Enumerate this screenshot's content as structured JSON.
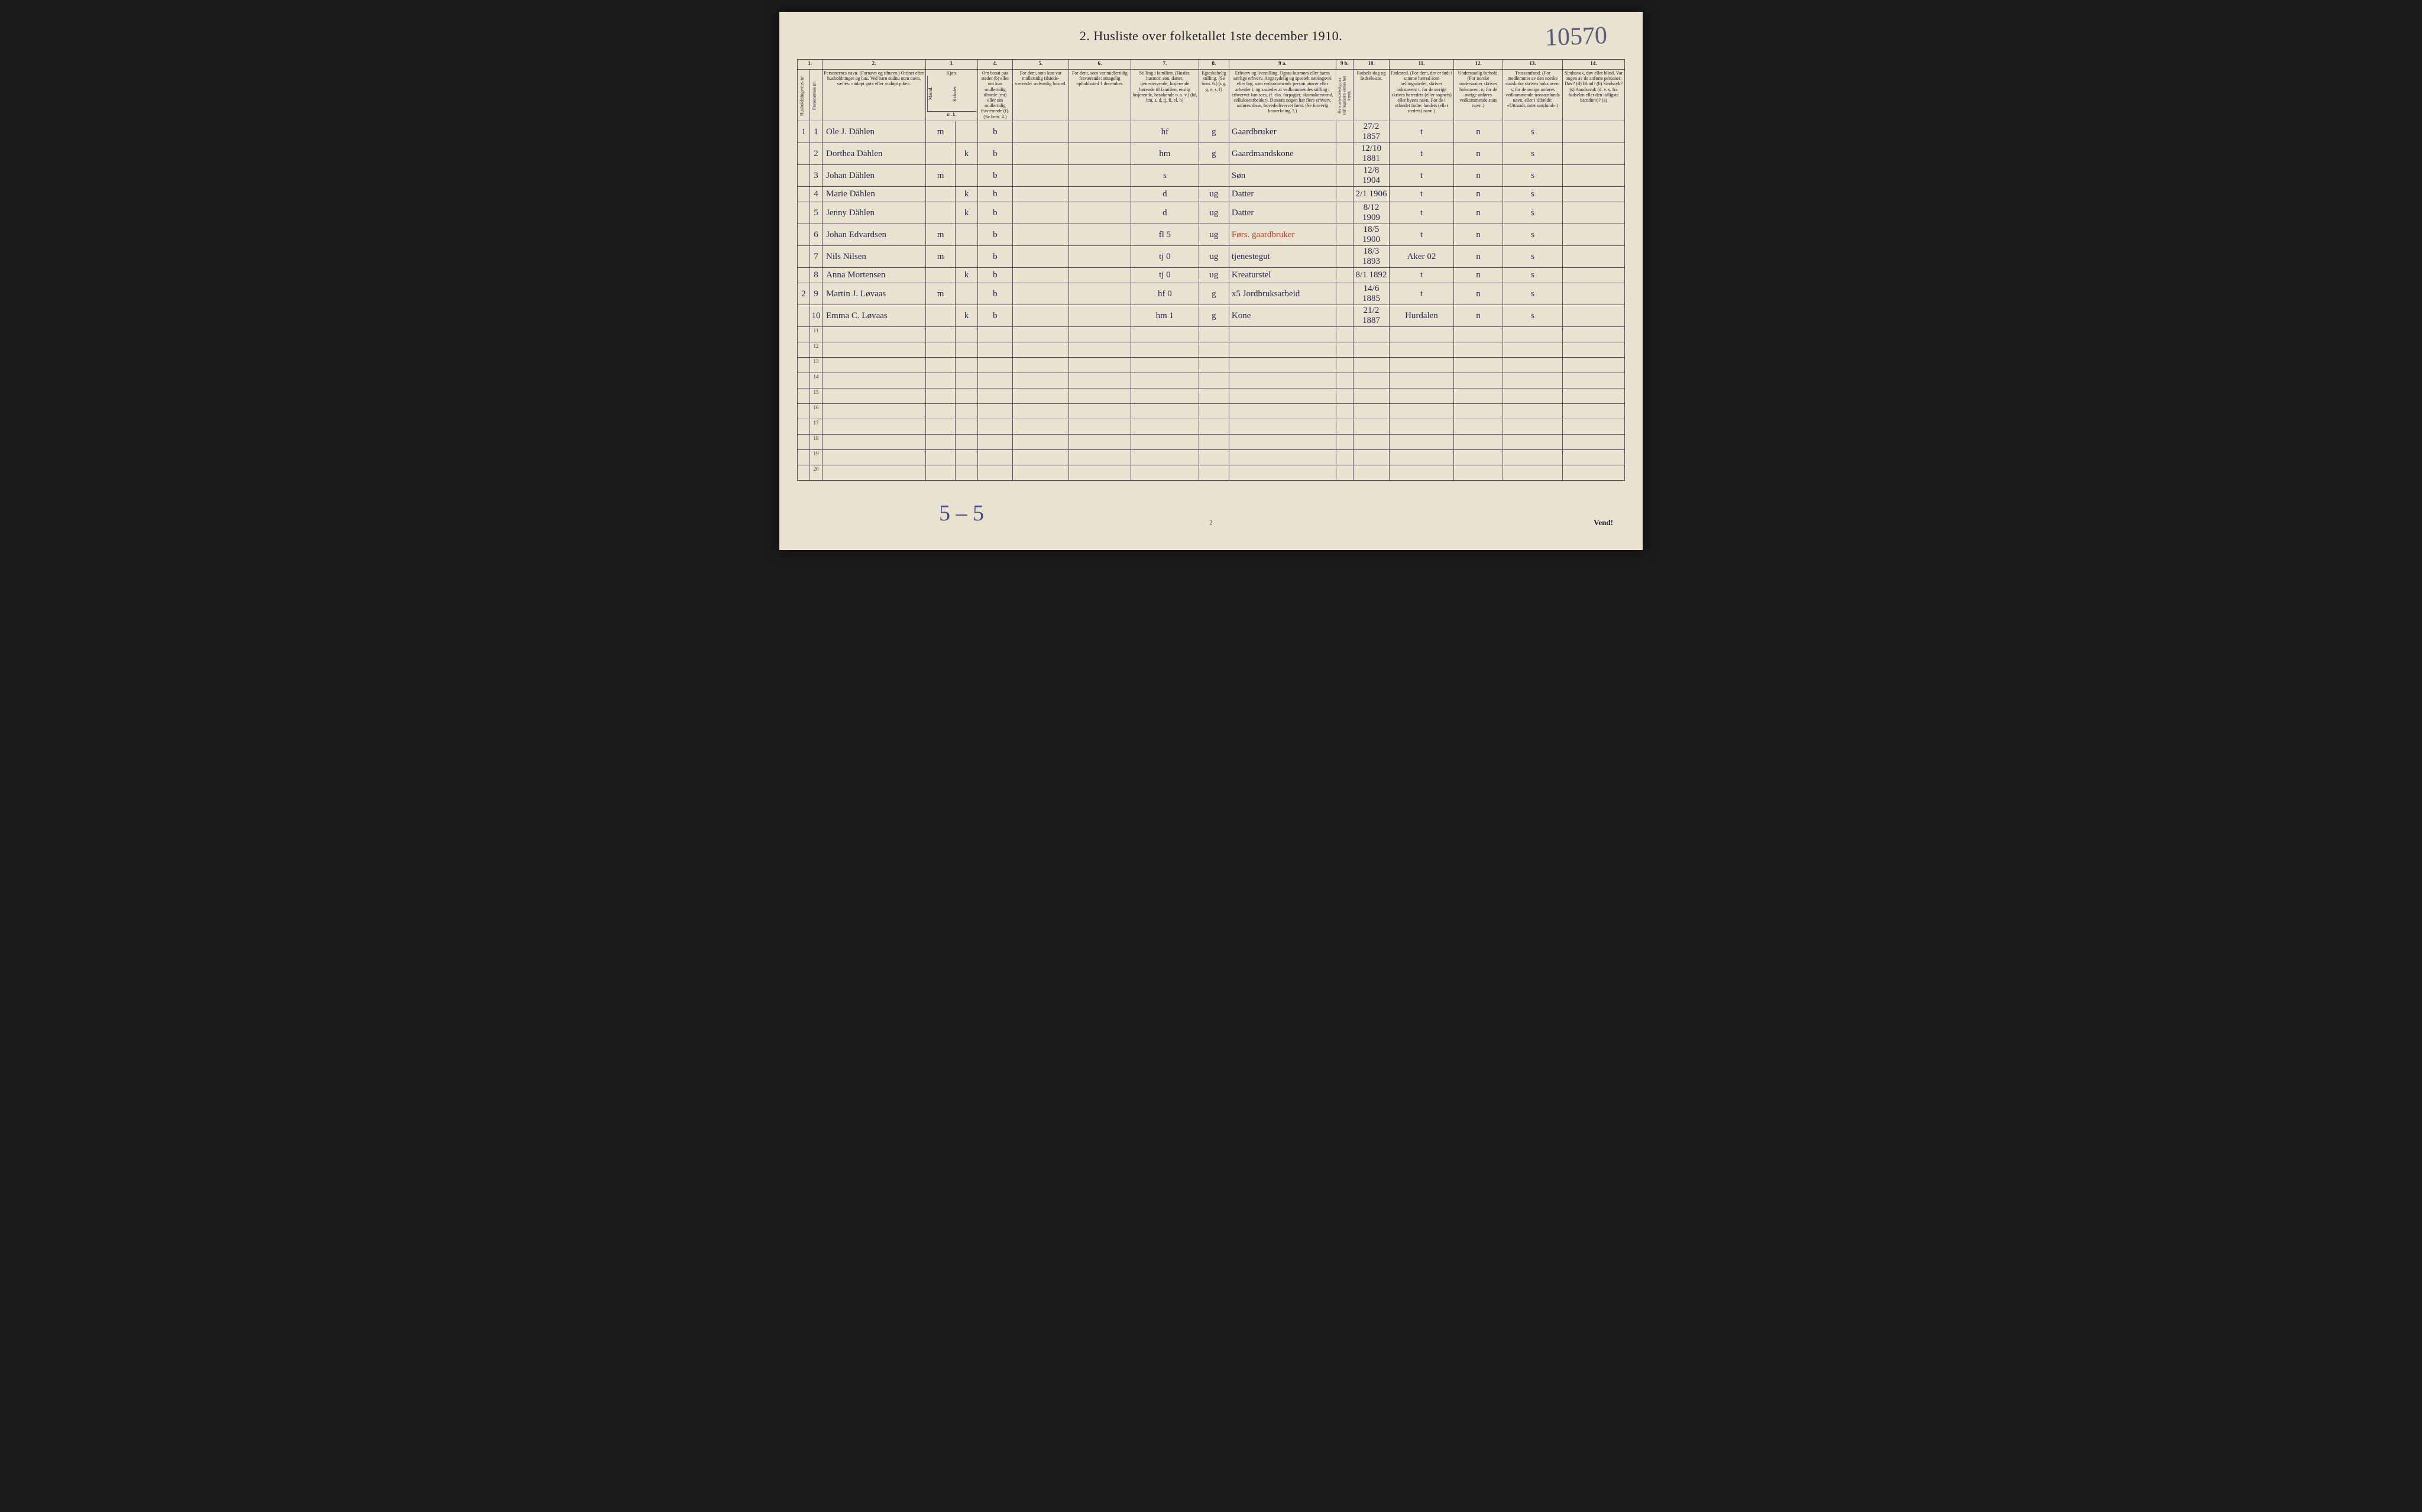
{
  "title": "2.  Husliste over folketallet 1ste december 1910.",
  "topright_annotation": "10570",
  "bottom_annotation": "5 – 5",
  "vend": "Vend!",
  "page_number": "2",
  "colors": {
    "paper": "#e8e2d0",
    "ink": "#222222",
    "handwriting": "#2a2a4a",
    "red_ink": "#c0392b",
    "border": "#555555",
    "background": "#1a1a1a"
  },
  "column_numbers": [
    "1.",
    "2.",
    "3.",
    "4.",
    "5.",
    "6.",
    "7.",
    "8.",
    "9 a.",
    "9 b.",
    "10.",
    "11.",
    "12.",
    "13.",
    "14."
  ],
  "headers": {
    "c1a": "Husholdningernes nr.",
    "c1b": "Personernes nr.",
    "c2": "Personernes navn.\n(Fornavn og tilnavn.)\nOrdnet efter husholdninger og hus.\nVed barn endnu uten navn, sættes: «udøpt gut» eller «udøpt pike».",
    "c3": "Kjøn.",
    "c3m": "Mænd.",
    "c3k": "Kvinder.",
    "c4": "Om bosat paa stedet (b) eller om kun midlertidig tilstede (mt) eller om midlertidig fraværende (f).\n(Se bem. 4.)",
    "c5": "For dem, som kun var midlertidig tilstede-værende:\nsedvanlig bosted.",
    "c6": "For dem, som var midlertidig fraværende:\nantagelig opholdssted 1 december.",
    "c7": "Stilling i familien.\n(Husfar, husmor, søn, datter, tjenestetyende, losjerende hørende til familien, enslig losjerende, besøkende o. s. v.)\n(hf, hm, s, d, tj, fl, el, b)",
    "c8": "Egteskabelig stilling.\n(Se bem. 6.)\n(ug, g, e, s, f)",
    "c9a": "Erhverv og livsstilling.\nOgsaa husmors eller barns særlige erhverv. Angi tydelig og specielt næringsvei eller fag, som vedkommende person utøver eller arbeider i, og saaledes at vedkommendes stilling i erhvervet kan sees, (f. eks. forpagter, skomakersvend, cellulosearbeider). Dersom nogen har flere erhverv, anføres disse, hovederhvervet først.\n(Se forøvrig bemerkning 7.)",
    "c9b": "Hvis arbeidsledig paa tællingstiden sættes her kryds.",
    "c10": "Fødsels-dag og fødsels-aar.",
    "c11": "Fødested.\n(For dem, der er født i samme herred som tællingsstedet, skrives bokstaven: t; for de øvrige skrives herredets (eller sognets) eller byens navn. For de i utlandet fodte: landets (eller stedets) navn.)",
    "c12": "Undersaatlig forhold.\n(For norske undersaatter skrives bokstaven: n; for de øvrige anføres vedkommende stats navn.)",
    "c13": "Trossamfund.\n(For medlemmer av den norske statskirke skrives bokstaven: s; for de øvrige anføres vedkommende trossamfunds navn, eller i tilfælde: «Uttraadt, intet samfund».)",
    "c14": "Sindssvak, døv eller blind.\nVar nogen av de anførte personer:\nDøv? (d)\nBlind? (b)\nSindssyk? (s)\nAandssvak (d. v. s. fra fødselen eller den tidligste barndom)? (a)",
    "mk": "m.  k."
  },
  "rows": [
    {
      "hh": "1",
      "pn": "1",
      "name": "Ole J. Dählen",
      "sex_m": "m",
      "sex_k": "",
      "res": "b",
      "c5": "",
      "c6": "",
      "fam": "hf",
      "mar": "g",
      "occ": "Gaardbruker",
      "c9b": "",
      "birth": "27/2 1857",
      "birthplace": "t",
      "nat": "n",
      "rel": "s",
      "c14": ""
    },
    {
      "hh": "",
      "pn": "2",
      "name": "Dorthea Dählen",
      "sex_m": "",
      "sex_k": "k",
      "res": "b",
      "c5": "",
      "c6": "",
      "fam": "hm",
      "mar": "g",
      "occ": "Gaardmandskone",
      "c9b": "",
      "birth": "12/10 1881",
      "birthplace": "t",
      "nat": "n",
      "rel": "s",
      "c14": ""
    },
    {
      "hh": "",
      "pn": "3",
      "name": "Johan Dählen",
      "sex_m": "m",
      "sex_k": "",
      "res": "b",
      "c5": "",
      "c6": "",
      "fam": "s",
      "mar": "",
      "occ": "Søn",
      "c9b": "",
      "birth": "12/8 1904",
      "birthplace": "t",
      "nat": "n",
      "rel": "s",
      "c14": ""
    },
    {
      "hh": "",
      "pn": "4",
      "name": "Marie Dählen",
      "sex_m": "",
      "sex_k": "k",
      "res": "b",
      "c5": "",
      "c6": "",
      "fam": "d",
      "mar": "ug",
      "occ": "Datter",
      "c9b": "",
      "birth": "2/1 1906",
      "birthplace": "t",
      "nat": "n",
      "rel": "s",
      "c14": ""
    },
    {
      "hh": "",
      "pn": "5",
      "name": "Jenny Dählen",
      "sex_m": "",
      "sex_k": "k",
      "res": "b",
      "c5": "",
      "c6": "",
      "fam": "d",
      "mar": "ug",
      "occ": "Datter",
      "c9b": "",
      "birth": "8/12 1909",
      "birthplace": "t",
      "nat": "n",
      "rel": "s",
      "c14": ""
    },
    {
      "hh": "",
      "pn": "6",
      "name": "Johan Edvardsen",
      "sex_m": "m",
      "sex_k": "",
      "res": "b",
      "c5": "",
      "c6": "",
      "fam": "fl  5",
      "mar": "ug",
      "occ": "",
      "occ_red": "Førs. gaardbruker",
      "c9b": "",
      "birth": "18/5 1900",
      "birthplace": "t",
      "nat": "n",
      "rel": "s",
      "c14": ""
    },
    {
      "hh": "",
      "pn": "7",
      "name": "Nils Nilsen",
      "sex_m": "m",
      "sex_k": "",
      "res": "b",
      "c5": "",
      "c6": "",
      "fam": "tj   0",
      "mar": "ug",
      "occ": "tjenestegut",
      "c9b": "",
      "birth": "18/3 1893",
      "birthplace": "Aker 02",
      "nat": "n",
      "rel": "s",
      "c14": ""
    },
    {
      "hh": "",
      "pn": "8",
      "name": "Anna Mortensen",
      "sex_m": "",
      "sex_k": "k",
      "res": "b",
      "c5": "",
      "c6": "",
      "fam": "tj   0",
      "mar": "ug",
      "occ": "Kreaturstel",
      "c9b": "",
      "birth": "8/1 1892",
      "birthplace": "t",
      "nat": "n",
      "rel": "s",
      "c14": ""
    },
    {
      "hh": "2",
      "pn": "9",
      "name": "Martin J. Løvaas",
      "sex_m": "m",
      "sex_k": "",
      "res": "b",
      "c5": "",
      "c6": "",
      "fam": "hf   0",
      "mar": "g",
      "occ": "x5  Jordbruksarbeid",
      "c9b": "",
      "birth": "14/6 1885",
      "birthplace": "t",
      "nat": "n",
      "rel": "s",
      "c14": ""
    },
    {
      "hh": "",
      "pn": "10",
      "name": "Emma C. Løvaas",
      "sex_m": "",
      "sex_k": "k",
      "res": "b",
      "c5": "",
      "c6": "",
      "fam": "hm   1",
      "mar": "g",
      "occ": "Kone",
      "c9b": "",
      "birth": "21/2 1887",
      "birthplace": "Hurdalen",
      "nat": "n",
      "rel": "s",
      "c14": ""
    }
  ],
  "empty_rows": [
    11,
    12,
    13,
    14,
    15,
    16,
    17,
    18,
    19,
    20
  ]
}
